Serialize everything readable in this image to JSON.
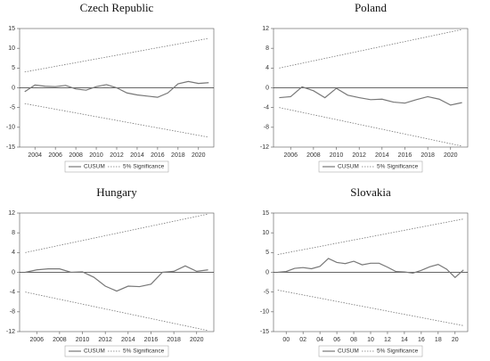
{
  "chart_data": [
    {
      "type": "line",
      "title": "Czech Republic",
      "x": [
        2003,
        2004,
        2005,
        2006,
        2007,
        2008,
        2009,
        2010,
        2011,
        2012,
        2013,
        2014,
        2015,
        2016,
        2017,
        2018,
        2019,
        2020,
        2021
      ],
      "xlim": [
        2002.5,
        2021.5
      ],
      "xticks": [
        2004,
        2006,
        2008,
        2010,
        2012,
        2014,
        2016,
        2018,
        2020
      ],
      "ylim": [
        -15,
        15
      ],
      "yticks": [
        -15,
        -10,
        -5,
        0,
        5,
        10,
        15
      ],
      "series": [
        {
          "name": "CUSUM",
          "color": "#777777",
          "values": [
            -1,
            0.7,
            0.4,
            0.3,
            0.6,
            -0.3,
            -0.6,
            0.3,
            0.8,
            0,
            -1.3,
            -1.8,
            -2.1,
            -2.4,
            -1.3,
            1,
            1.6,
            1.1,
            1.3
          ]
        }
      ],
      "bands": {
        "name": "5% Significance",
        "color": "#777777",
        "x": [
          2003,
          2021
        ],
        "upper": [
          4,
          12.5
        ],
        "lower": [
          -4,
          -12.5
        ]
      }
    },
    {
      "type": "line",
      "title": "Poland",
      "x": [
        2005,
        2006,
        2007,
        2008,
        2009,
        2010,
        2011,
        2012,
        2013,
        2014,
        2015,
        2016,
        2017,
        2018,
        2019,
        2020,
        2021
      ],
      "xlim": [
        2004.5,
        2021.5
      ],
      "xticks": [
        2006,
        2008,
        2010,
        2012,
        2014,
        2016,
        2018,
        2020
      ],
      "ylim": [
        -12,
        12
      ],
      "yticks": [
        -12,
        -8,
        -4,
        0,
        4,
        8,
        12
      ],
      "series": [
        {
          "name": "CUSUM",
          "color": "#777777",
          "values": [
            -2,
            -1.8,
            0.2,
            -0.6,
            -2,
            -0.1,
            -1.5,
            -2,
            -2.4,
            -2.3,
            -2.9,
            -3.1,
            -2.4,
            -1.8,
            -2.3,
            -3.5,
            -3
          ]
        }
      ],
      "bands": {
        "name": "5% Significance",
        "color": "#777777",
        "x": [
          2005,
          2021
        ],
        "upper": [
          4,
          11.8
        ],
        "lower": [
          -4,
          -11.8
        ]
      }
    },
    {
      "type": "line",
      "title": "Hungary",
      "x": [
        2005,
        2006,
        2007,
        2008,
        2009,
        2010,
        2011,
        2012,
        2013,
        2014,
        2015,
        2016,
        2017,
        2018,
        2019,
        2020,
        2021
      ],
      "xlim": [
        2004.5,
        2021.5
      ],
      "xticks": [
        2006,
        2008,
        2010,
        2012,
        2014,
        2016,
        2018,
        2020
      ],
      "ylim": [
        -12,
        12
      ],
      "yticks": [
        -12,
        -8,
        -4,
        0,
        4,
        8,
        12
      ],
      "series": [
        {
          "name": "CUSUM",
          "color": "#777777",
          "values": [
            0,
            0.5,
            0.7,
            0.7,
            0,
            0.1,
            -1,
            -2.8,
            -3.8,
            -2.8,
            -2.9,
            -2.4,
            0,
            0.2,
            1.3,
            0.2,
            0.5
          ]
        }
      ],
      "bands": {
        "name": "5% Significance",
        "color": "#777777",
        "x": [
          2005,
          2021
        ],
        "upper": [
          4,
          11.8
        ],
        "lower": [
          -4,
          -11.8
        ]
      }
    },
    {
      "type": "line",
      "title": "Slovakia",
      "x": [
        1999,
        2000,
        2001,
        2002,
        2003,
        2004,
        2005,
        2006,
        2007,
        2008,
        2009,
        2010,
        2011,
        2012,
        2013,
        2014,
        2015,
        2016,
        2017,
        2018,
        2019,
        2020,
        2021
      ],
      "xlim": [
        1998.5,
        2021.5
      ],
      "xticks": [
        {
          "value": 2000,
          "label": "00"
        },
        {
          "value": 2002,
          "label": "02"
        },
        {
          "value": 2004,
          "label": "04"
        },
        {
          "value": 2006,
          "label": "06"
        },
        {
          "value": 2008,
          "label": "08"
        },
        {
          "value": 2010,
          "label": "10"
        },
        {
          "value": 2012,
          "label": "12"
        },
        {
          "value": 2014,
          "label": "14"
        },
        {
          "value": 2016,
          "label": "16"
        },
        {
          "value": 2018,
          "label": "18"
        },
        {
          "value": 2020,
          "label": "20"
        }
      ],
      "ylim": [
        -15,
        15
      ],
      "yticks": [
        -15,
        -10,
        -5,
        0,
        5,
        10,
        15
      ],
      "series": [
        {
          "name": "CUSUM",
          "color": "#777777",
          "values": [
            0,
            0.2,
            1,
            1.2,
            0.9,
            1.5,
            3.5,
            2.5,
            2.2,
            2.8,
            1.9,
            2.3,
            2.3,
            1.3,
            0.2,
            0.1,
            -0.2,
            0.5,
            1.4,
            2,
            0.8,
            -1.3,
            0.6
          ]
        }
      ],
      "bands": {
        "name": "5% Significance",
        "color": "#777777",
        "x": [
          1999,
          2021
        ],
        "upper": [
          4.5,
          13.5
        ],
        "lower": [
          -4.5,
          -13.5
        ]
      }
    }
  ]
}
